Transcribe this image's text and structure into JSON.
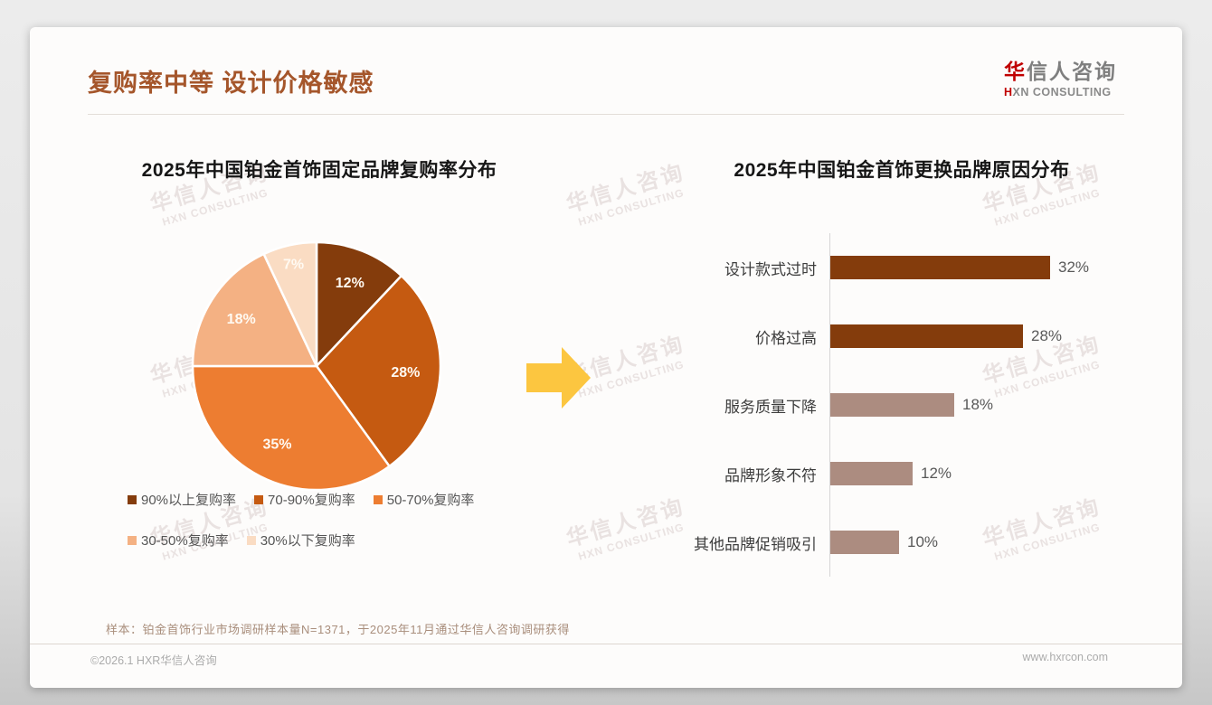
{
  "page": {
    "title": "复购率中等 设计价格敏感",
    "logo": {
      "brand_cn_highlight": "华",
      "brand_cn_rest": "信人咨询",
      "brand_en_highlight": "H",
      "brand_en_rest": "XN CONSULTING"
    },
    "watermark": {
      "line1": "华信人咨询",
      "line2": "HXN CONSULTING"
    },
    "footnote": "样本：铂金首饰行业市场调研样本量N=1371，于2025年11月通过华信人咨询调研获得",
    "footer_left": "©2026.1 HXR华信人咨询",
    "footer_right": "www.hxrcon.com"
  },
  "colors": {
    "title_brown": "#a5562b",
    "logo_red": "#c00000",
    "arrow_yellow": "#fcc640",
    "axis_gray": "#d6d6d6"
  },
  "chart_data": [
    {
      "type": "pie",
      "title": "2025年中国铂金首饰固定品牌复购率分布",
      "labels": [
        "90%以上复购率",
        "70-90%复购率",
        "50-70%复购率",
        "30-50%复购率",
        "30%以下复购率"
      ],
      "values": [
        12,
        28,
        35,
        18,
        7
      ],
      "data_labels": [
        "12%",
        "28%",
        "35%",
        "18%",
        "7%"
      ],
      "colors": [
        "#843c0c",
        "#c55a11",
        "#ed7d31",
        "#f4b183",
        "#fadcc3"
      ],
      "legend_position": "bottom",
      "legend_rows": [
        [
          0,
          1,
          2
        ],
        [
          3,
          4
        ]
      ]
    },
    {
      "type": "bar",
      "orientation": "horizontal",
      "title": "2025年中国铂金首饰更换品牌原因分布",
      "categories": [
        "设计款式过时",
        "价格过高",
        "服务质量下降",
        "品牌形象不符",
        "其他品牌促销吸引"
      ],
      "values": [
        32,
        28,
        18,
        12,
        10
      ],
      "value_labels": [
        "32%",
        "28%",
        "18%",
        "12%",
        "10%"
      ],
      "bar_colors": [
        "#843c0c",
        "#843c0c",
        "#ac8c80",
        "#ac8c80",
        "#ac8c80"
      ],
      "xlim": [
        0,
        35
      ],
      "grid": false
    }
  ]
}
